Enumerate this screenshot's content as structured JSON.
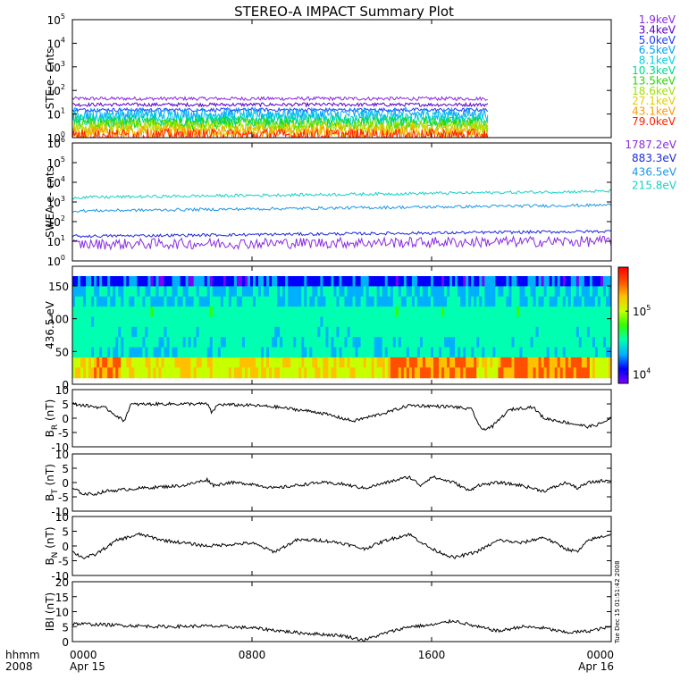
{
  "title": "STEREO-A IMPACT Summary Plot",
  "x_axis": {
    "ticks": [
      {
        "line1": "0000",
        "line2": "Apr 15",
        "hour": 0
      },
      {
        "line1": "0800",
        "line2": "",
        "hour": 8
      },
      {
        "line1": "1600",
        "line2": "",
        "hour": 16
      },
      {
        "line1": "0000",
        "line2": "Apr 16",
        "hour": 24
      }
    ],
    "corner_line1": "hhmm",
    "corner_line2": "2008",
    "range_hours": [
      0,
      24
    ]
  },
  "footer_stamp": "Tue Dec 15 01:51:42 2008",
  "colorbar": {
    "labels": [
      {
        "text": "10",
        "exp": "5",
        "log": 5
      },
      {
        "text": "10",
        "exp": "4",
        "log": 4
      }
    ],
    "log_range": [
      3.85,
      5.7
    ],
    "colors": [
      "#7a00ff",
      "#0000ff",
      "#00b0ff",
      "#00ffb0",
      "#30ff00",
      "#c8ff00",
      "#ffc000",
      "#ff5000",
      "#ff0000"
    ]
  },
  "chart_data": [
    {
      "type": "line",
      "ylabel": "STE e- Cnts",
      "yscale": "log",
      "ylim": [
        1,
        100000
      ],
      "y_ticks": [
        {
          "text": "10",
          "exp": "0",
          "v": 1
        },
        {
          "text": "10",
          "exp": "1",
          "v": 10
        },
        {
          "text": "10",
          "exp": "2",
          "v": 100
        },
        {
          "text": "10",
          "exp": "3",
          "v": 1000
        },
        {
          "text": "10",
          "exp": "4",
          "v": 10000
        },
        {
          "text": "10",
          "exp": "5",
          "v": 100000
        }
      ],
      "x_end_hour": 18.5,
      "series": [
        {
          "name": "1.9keV",
          "color": "#8a2be2",
          "level": 45
        },
        {
          "name": "3.4keV",
          "color": "#5a00c8",
          "level": 25
        },
        {
          "name": "5.0keV",
          "color": "#1e3cff",
          "level": 15
        },
        {
          "name": "6.5keV",
          "color": "#00a0ff",
          "level": 10
        },
        {
          "name": "8.1keV",
          "color": "#00d0e0",
          "level": 7
        },
        {
          "name": "10.3keV",
          "color": "#00d890",
          "level": 5
        },
        {
          "name": "13.5keV",
          "color": "#28d800",
          "level": 3.8
        },
        {
          "name": "18.6keV",
          "color": "#a0e000",
          "level": 2.9
        },
        {
          "name": "27.1keV",
          "color": "#e0d000",
          "level": 2.1
        },
        {
          "name": "43.1keV",
          "color": "#ff9a00",
          "level": 1.6
        },
        {
          "name": "79.0keV",
          "color": "#ff2000",
          "level": 1.25
        }
      ]
    },
    {
      "type": "line",
      "ylabel": "SWEA e- cnts",
      "yscale": "log",
      "ylim": [
        1,
        1000000
      ],
      "y_ticks": [
        {
          "text": "10",
          "exp": "0",
          "v": 1
        },
        {
          "text": "10",
          "exp": "1",
          "v": 10
        },
        {
          "text": "10",
          "exp": "2",
          "v": 100
        },
        {
          "text": "10",
          "exp": "3",
          "v": 1000
        },
        {
          "text": "10",
          "exp": "4",
          "v": 10000
        },
        {
          "text": "10",
          "exp": "5",
          "v": 100000
        },
        {
          "text": "10",
          "exp": "6",
          "v": 1000000
        }
      ],
      "series": [
        {
          "name": "1787.2eV",
          "color": "#8a2be2",
          "level": 7,
          "end_level": 10
        },
        {
          "name": "883.3eV",
          "color": "#1e28dc",
          "level": 18,
          "end_level": 32
        },
        {
          "name": "436.5eV",
          "color": "#1e96e6",
          "level": 350,
          "end_level": 700
        },
        {
          "name": "215.8eV",
          "color": "#14d2c8",
          "level": 1700,
          "end_level": 3500
        }
      ]
    },
    {
      "type": "heatmap",
      "ylabel": "436.5 eV",
      "ylim": [
        0,
        180
      ],
      "y_ticks": [
        0,
        50,
        100,
        150
      ],
      "data_range": [
        10,
        165
      ]
    },
    {
      "type": "line",
      "ylabel": "B",
      "ylabel_sub": "R",
      "ylabel_unit": " (nT)",
      "ylim": [
        -10,
        10
      ],
      "y_ticks": [
        -10,
        -5,
        0,
        5,
        10
      ],
      "series": [
        {
          "points": [
            [
              0,
              5
            ],
            [
              1.5,
              3.5
            ],
            [
              2.3,
              -1
            ],
            [
              2.6,
              4.8
            ],
            [
              4,
              5
            ],
            [
              6,
              5
            ],
            [
              6.2,
              2
            ],
            [
              6.5,
              4.8
            ],
            [
              8,
              4.5
            ],
            [
              9,
              4
            ],
            [
              10,
              3
            ],
            [
              11,
              2
            ],
            [
              12.5,
              -1
            ],
            [
              13,
              0
            ],
            [
              14,
              2
            ],
            [
              15,
              4.5
            ],
            [
              17,
              4
            ],
            [
              17.8,
              3
            ],
            [
              18.2,
              -4
            ],
            [
              18.7,
              -3
            ],
            [
              19.2,
              1
            ],
            [
              19.5,
              3
            ],
            [
              20.5,
              4
            ],
            [
              21,
              0
            ],
            [
              22,
              -1.5
            ],
            [
              23,
              -3
            ],
            [
              23.5,
              -2
            ],
            [
              24,
              0
            ]
          ]
        }
      ]
    },
    {
      "type": "line",
      "ylabel": "B",
      "ylabel_sub": "T",
      "ylabel_unit": " (nT)",
      "ylim": [
        -10,
        10
      ],
      "y_ticks": [
        -10,
        -5,
        0,
        5,
        10
      ],
      "series": [
        {
          "points": [
            [
              0,
              -2
            ],
            [
              0.5,
              -4
            ],
            [
              1,
              -4
            ],
            [
              1.5,
              -3
            ],
            [
              3,
              -2
            ],
            [
              5,
              -1
            ],
            [
              6,
              1
            ],
            [
              6.3,
              -1
            ],
            [
              7,
              0
            ],
            [
              8,
              -0.5
            ],
            [
              9,
              -2
            ],
            [
              10,
              -1
            ],
            [
              11,
              0
            ],
            [
              12,
              -0.5
            ],
            [
              13,
              -2
            ],
            [
              14,
              0
            ],
            [
              15,
              2
            ],
            [
              15.5,
              -1
            ],
            [
              16,
              2
            ],
            [
              17,
              0
            ],
            [
              17.7,
              -3
            ],
            [
              18,
              -1
            ],
            [
              19,
              0
            ],
            [
              20,
              -1
            ],
            [
              21,
              -3
            ],
            [
              22,
              0
            ],
            [
              22.5,
              -2
            ],
            [
              23,
              0
            ],
            [
              24,
              1
            ]
          ]
        }
      ]
    },
    {
      "type": "line",
      "ylabel": "B",
      "ylabel_sub": "N",
      "ylabel_unit": " (nT)",
      "ylim": [
        -10,
        10
      ],
      "y_ticks": [
        -10,
        -5,
        0,
        5,
        10
      ],
      "series": [
        {
          "points": [
            [
              0,
              -2
            ],
            [
              0.5,
              -4
            ],
            [
              1,
              -3
            ],
            [
              2,
              2
            ],
            [
              3,
              4
            ],
            [
              4,
              2
            ],
            [
              6,
              0
            ],
            [
              8,
              1
            ],
            [
              9,
              -2
            ],
            [
              10,
              2
            ],
            [
              11,
              2
            ],
            [
              12,
              1
            ],
            [
              13,
              -1
            ],
            [
              14,
              2
            ],
            [
              15,
              4
            ],
            [
              16,
              -1
            ],
            [
              17,
              -4
            ],
            [
              18,
              -2
            ],
            [
              19,
              2
            ],
            [
              20,
              1
            ],
            [
              21,
              3
            ],
            [
              22,
              -1
            ],
            [
              22.5,
              -2
            ],
            [
              23,
              2
            ],
            [
              24,
              4
            ]
          ]
        }
      ]
    },
    {
      "type": "line",
      "ylabel": "IBI (nT)",
      "ylim": [
        0,
        20
      ],
      "y_ticks": [
        0,
        5,
        10,
        15,
        20
      ],
      "series": [
        {
          "points": [
            [
              0,
              6
            ],
            [
              2,
              5.5
            ],
            [
              4,
              5
            ],
            [
              6,
              5.2
            ],
            [
              8,
              4.6
            ],
            [
              10,
              3
            ],
            [
              12,
              2
            ],
            [
              13,
              0.5
            ],
            [
              14,
              3
            ],
            [
              15,
              5
            ],
            [
              16,
              5.5
            ],
            [
              17,
              7
            ],
            [
              18,
              5
            ],
            [
              19,
              3.5
            ],
            [
              20,
              5
            ],
            [
              21,
              4.5
            ],
            [
              22,
              3
            ],
            [
              23,
              3.5
            ],
            [
              24,
              5
            ]
          ]
        }
      ]
    }
  ]
}
